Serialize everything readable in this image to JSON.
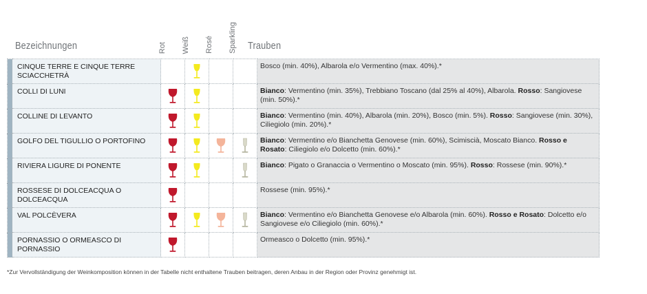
{
  "header": {
    "names_label": "Bezeichnungen",
    "col_rot": "Rot",
    "col_weiss": "Weiß",
    "col_rose": "Rosé",
    "col_sparkling": "Sparkling",
    "grapes_label": "Trauben"
  },
  "colors": {
    "red_glass": "#c0182c",
    "white_glass": "#f4ea1e",
    "rose_glass": "#f4b49a",
    "sparkling_glass": "#d9d9c8",
    "name_column_bg": "#eef3f6",
    "grapes_column_bg": "#e5e6e7",
    "row_strip": "#9fb4c2"
  },
  "rows": [
    {
      "name": "CINQUE TERRE E CINQUE TERRE SCIACCHETRÀ",
      "rot": false,
      "weiss": true,
      "rose": false,
      "sparkling": false,
      "grapes": [
        {
          "text": "Bosco (min. 40%), Albarola e/o Vermentino (max. 40%).*",
          "bold": false
        }
      ]
    },
    {
      "name": "COLLI DI LUNI",
      "rot": true,
      "weiss": true,
      "rose": false,
      "sparkling": false,
      "grapes": [
        {
          "text": "Bianco",
          "bold": true
        },
        {
          "text": ": Vermentino (min. 35%), Trebbiano Toscano (dal 25% al 40%), Albarola. ",
          "bold": false
        },
        {
          "text": "Rosso",
          "bold": true
        },
        {
          "text": ": Sangiovese (min. 50%).*",
          "bold": false
        }
      ]
    },
    {
      "name": "COLLINE DI LEVANTO",
      "rot": true,
      "weiss": true,
      "rose": false,
      "sparkling": false,
      "grapes": [
        {
          "text": "Bianco",
          "bold": true
        },
        {
          "text": ": Vermentino (min. 40%), Albarola (min. 20%), Bosco (min. 5%). ",
          "bold": false
        },
        {
          "text": "Rosso",
          "bold": true
        },
        {
          "text": ": Sangiovese (min. 30%), Ciliegiolo (min. 20%).*",
          "bold": false
        }
      ]
    },
    {
      "name": "GOLFO DEL TIGULLIO O PORTOFINO",
      "rot": true,
      "weiss": true,
      "rose": true,
      "sparkling": true,
      "grapes": [
        {
          "text": "Bianco",
          "bold": true
        },
        {
          "text": ": Vermentino e/o Bianchetta Genovese (min. 60%), Scimiscià, Moscato Bianco. ",
          "bold": false
        },
        {
          "text": "Rosso e Rosato",
          "bold": true
        },
        {
          "text": ": Ciliegiolo e/o Dolcetto (min. 60%).*",
          "bold": false
        }
      ]
    },
    {
      "name": "RIVIERA LIGURE DI PONENTE",
      "rot": true,
      "weiss": true,
      "rose": false,
      "sparkling": true,
      "grapes": [
        {
          "text": "Bianco",
          "bold": true
        },
        {
          "text": ": Pigato o Granaccia o Vermentino o Moscato (min. 95%). ",
          "bold": false
        },
        {
          "text": "Rosso",
          "bold": true
        },
        {
          "text": ": Rossese (min. 90%).*",
          "bold": false
        }
      ]
    },
    {
      "name": "ROSSESE DI DOLCEACQUA O DOLCEACQUA",
      "rot": true,
      "weiss": false,
      "rose": false,
      "sparkling": false,
      "grapes": [
        {
          "text": "Rossese (min. 95%).*",
          "bold": false
        }
      ]
    },
    {
      "name": "VAL POLCÈVERA",
      "rot": true,
      "weiss": true,
      "rose": true,
      "sparkling": true,
      "grapes": [
        {
          "text": "Bianco",
          "bold": true
        },
        {
          "text": ": Vermentino e/o Bianchetta Genovese e/o Albarola (min. 60%). ",
          "bold": false
        },
        {
          "text": "Rosso e Rosato",
          "bold": true
        },
        {
          "text": ": Dolcetto e/o Sangiovese e/o Ciliegiolo (min. 60%).*",
          "bold": false
        }
      ]
    },
    {
      "name": "PORNASSIO O ORMEASCO DI PORNASSIO",
      "rot": true,
      "weiss": false,
      "rose": false,
      "sparkling": false,
      "grapes": [
        {
          "text": "Ormeasco o Dolcetto (min. 95%).*",
          "bold": false
        }
      ]
    }
  ],
  "footnote": "*Zur Vervollständigung der Weinkomposition können in der Tabelle nicht enthaltene Trauben beitragen, deren Anbau in der Region oder Provinz genehmigt ist."
}
